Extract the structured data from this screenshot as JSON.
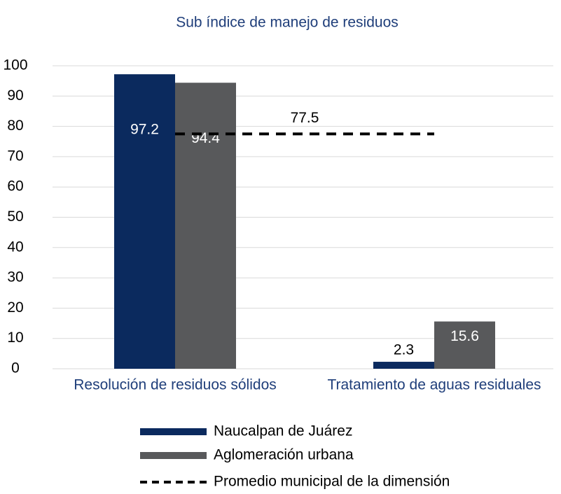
{
  "chart_data": {
    "type": "bar",
    "title": "Sub índice de manejo de residuos",
    "categories": [
      "Resolución de residuos sólidos",
      "Tratamiento de aguas residuales"
    ],
    "series": [
      {
        "name": "Naucalpan de Juárez",
        "color": "#0b2a5e",
        "values": [
          97.2,
          2.3
        ]
      },
      {
        "name": "Aglomeración urbana",
        "color": "#58595b",
        "values": [
          94.4,
          15.6
        ]
      }
    ],
    "reference_line": {
      "name": "Promedio municipal de la dimensión",
      "value": 77.5,
      "color": "#000000"
    },
    "ylim": [
      0,
      100
    ],
    "yticks": [
      0,
      10,
      20,
      30,
      40,
      50,
      60,
      70,
      80,
      90,
      100
    ],
    "grid": true
  }
}
